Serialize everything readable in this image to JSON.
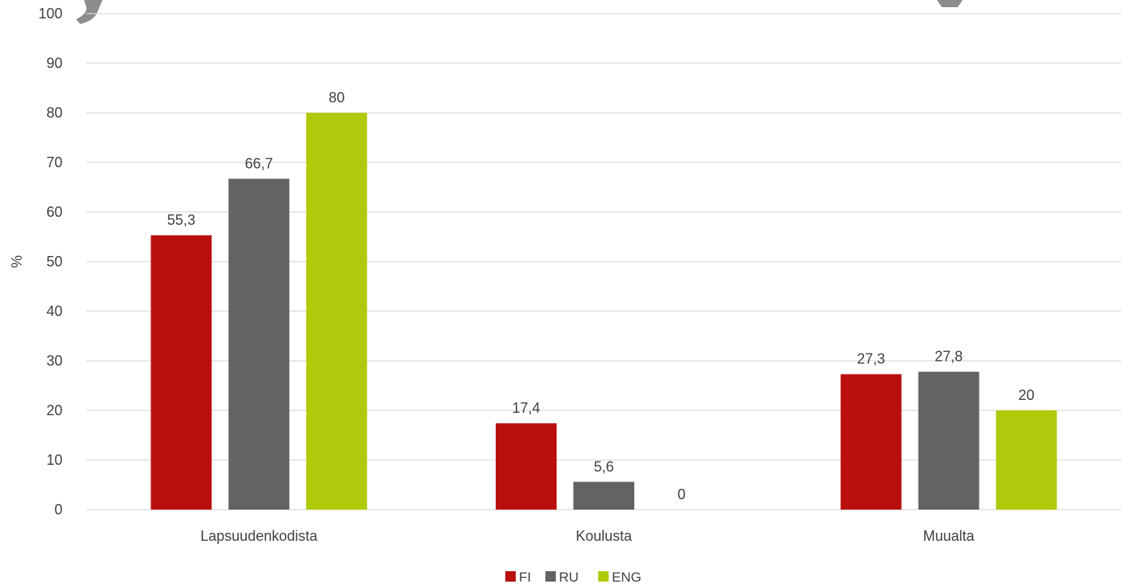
{
  "chart_data": {
    "type": "bar",
    "categories": [
      "Lapsuudenkodista",
      "Koulusta",
      "Muualta"
    ],
    "series": [
      {
        "name": "FI",
        "values": [
          55.3,
          17.4,
          27.3
        ],
        "labels": [
          "55,3",
          "17,4",
          "27,3"
        ],
        "color": "#BA0F0F"
      },
      {
        "name": "RU",
        "values": [
          66.7,
          5.6,
          27.8
        ],
        "labels": [
          "66,7",
          "5,6",
          "27,8"
        ],
        "color": "#636363"
      },
      {
        "name": "ENG",
        "values": [
          80,
          0,
          20
        ],
        "labels": [
          "80",
          "0",
          "20"
        ],
        "color": "#AFCA0B"
      }
    ],
    "ylabel": "%",
    "ylim": [
      0,
      100
    ],
    "yticks": [
      0,
      10,
      20,
      30,
      40,
      50,
      60,
      70,
      80,
      90,
      100
    ],
    "grid": true,
    "legend_position": "bottom-center"
  }
}
